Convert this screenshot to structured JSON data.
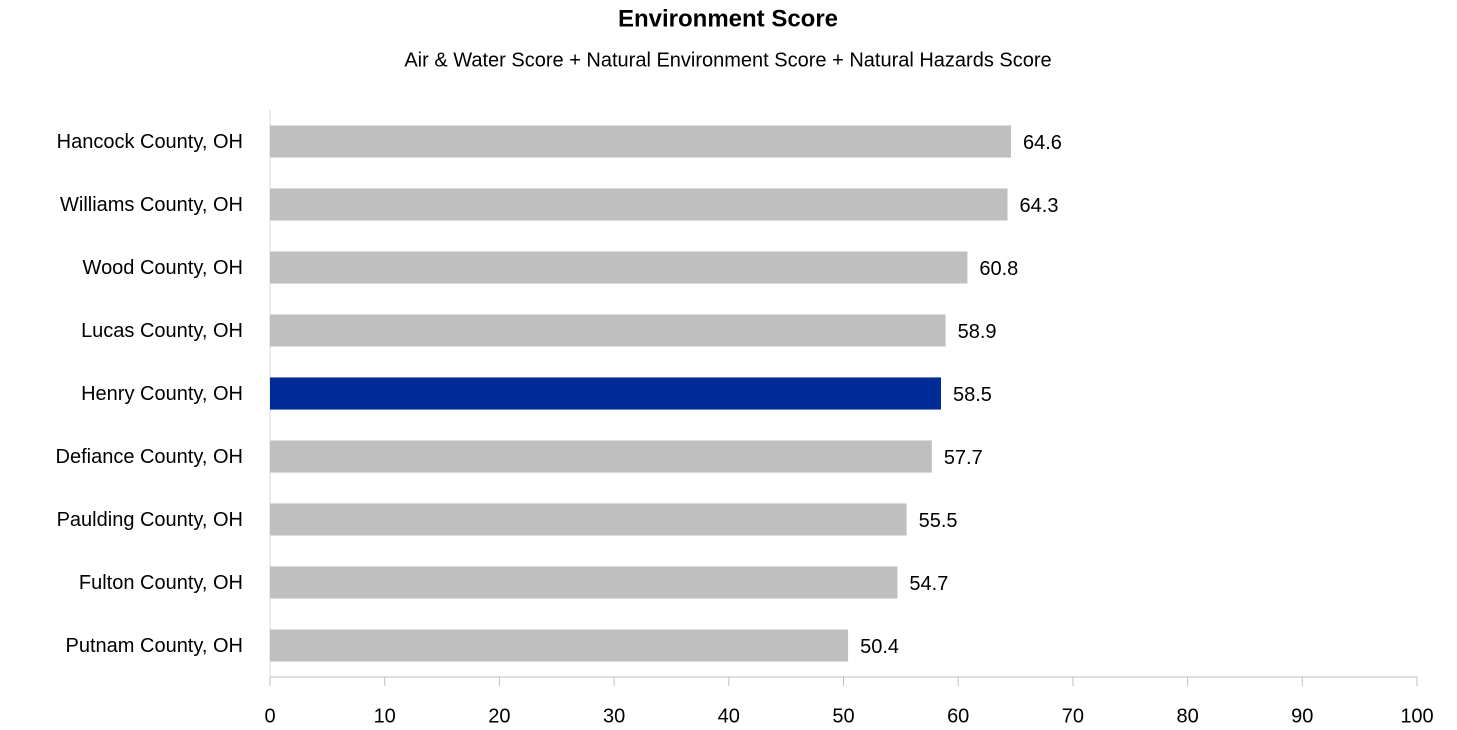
{
  "chart_data": {
    "type": "bar",
    "orientation": "horizontal",
    "title": "Environment Score",
    "subtitle": "Air & Water Score + Natural Environment Score + Natural Hazards Score",
    "categories": [
      "Hancock County, OH",
      "Williams County, OH",
      "Wood County, OH",
      "Lucas County, OH",
      "Henry County, OH",
      "Defiance County, OH",
      "Paulding County, OH",
      "Fulton County, OH",
      "Putnam County, OH"
    ],
    "values": [
      64.6,
      64.3,
      60.8,
      58.9,
      58.5,
      57.7,
      55.5,
      54.7,
      50.4
    ],
    "colors": [
      "#bfbfbf",
      "#bfbfbf",
      "#bfbfbf",
      "#bfbfbf",
      "#002b96",
      "#bfbfbf",
      "#bfbfbf",
      "#bfbfbf",
      "#bfbfbf"
    ],
    "xlim": [
      0,
      100
    ],
    "xticks": [
      0,
      10,
      20,
      30,
      40,
      50,
      60,
      70,
      80,
      90,
      100
    ],
    "grid": false
  }
}
